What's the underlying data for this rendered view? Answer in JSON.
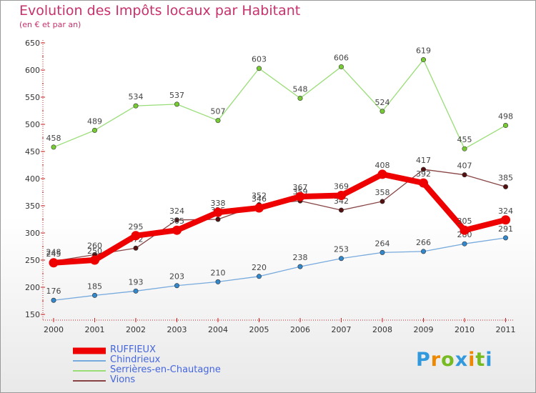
{
  "chart_data": {
    "type": "line",
    "title": "Evolution des Impôts locaux par Habitant",
    "subtitle": "(en € et par an)",
    "categories": [
      "2000",
      "2001",
      "2002",
      "2003",
      "2004",
      "2005",
      "2006",
      "2007",
      "2008",
      "2009",
      "2010",
      "2011"
    ],
    "ylim": [
      150,
      650
    ],
    "yticks": [
      150,
      200,
      250,
      300,
      350,
      400,
      450,
      500,
      550,
      600,
      650
    ],
    "grid": false,
    "legend_position": "bottom-left",
    "series": [
      {
        "name": "Serrières-en-Chautagne",
        "color": "#99dd77",
        "marker": "#77cc33",
        "values": [
          458,
          489,
          534,
          537,
          507,
          603,
          548,
          606,
          524,
          619,
          455,
          498
        ],
        "labels": [
          "458",
          "489",
          "534",
          "537",
          "507",
          "603",
          "548",
          "606",
          "524",
          "619",
          "455",
          "498"
        ]
      },
      {
        "name": "Chindrieux",
        "color": "#77aadd",
        "marker": "#3388cc",
        "values": [
          176,
          185,
          193,
          203,
          210,
          220,
          238,
          253,
          264,
          266,
          280,
          291
        ],
        "labels": [
          "176",
          "185",
          "193",
          "203",
          "210",
          "220",
          "238",
          "253",
          "264",
          "266",
          "280",
          "291"
        ]
      },
      {
        "name": "Vions",
        "color": "#884444",
        "marker": "#551111",
        "values": [
          248,
          260,
          272,
          324,
          325,
          352,
          359,
          342,
          358,
          417,
          407,
          385
        ],
        "labels": [
          "248",
          "260",
          "272",
          "324",
          "325",
          "352",
          "359",
          "342",
          "358",
          "417",
          "407",
          "385"
        ]
      },
      {
        "name": "RUFFIEUX",
        "color": "#ee0000",
        "marker": "#ee0000",
        "values": [
          245,
          250,
          295,
          305,
          338,
          346,
          367,
          369,
          408,
          392,
          305,
          324
        ],
        "labels": [
          "245",
          "250",
          "295",
          "305",
          "338",
          "346",
          "367",
          "369",
          "408",
          "392",
          "305",
          "324"
        ]
      }
    ],
    "legend": [
      "RUFFIEUX",
      "Chindrieux",
      "Serrières-en-Chautagne",
      "Vions"
    ]
  },
  "colors": {
    "title": "#c7316c",
    "axis": "#cc2222",
    "tick_text": "#333333",
    "legend_text": "#4466dd"
  },
  "logo": {
    "letters": [
      "P",
      "r",
      "o",
      "x",
      "i",
      "t",
      "i"
    ],
    "colors": [
      "#3399dd",
      "#ee8800",
      "#77bb22",
      "#3399dd",
      "#ee8800",
      "#77bb22",
      "#3399dd"
    ]
  }
}
